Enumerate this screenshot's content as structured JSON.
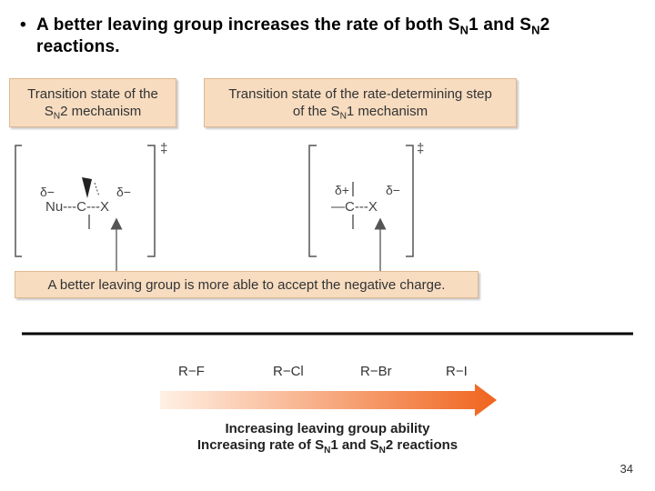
{
  "bullet": {
    "marker": "•",
    "text_pre": "A better leaving group increases the rate of both S",
    "sub1": "N",
    "text_mid": "1 and S",
    "sub2": "N",
    "text_post": "2 reactions."
  },
  "box_sn2": {
    "line1": "Transition state of the",
    "line2_pre": "S",
    "line2_sub": "N",
    "line2_post": "2 mechanism"
  },
  "box_sn1": {
    "line1": "Transition state of the rate-determining step",
    "line2_pre": "of the S",
    "line2_sub": "N",
    "line2_post": "1 mechanism"
  },
  "sn2_structure": {
    "delta_left": "δ−",
    "delta_right": "δ−",
    "formula": "Nu---C---X",
    "dagger": "‡"
  },
  "sn1_structure": {
    "delta_left": "δ+",
    "delta_right": "δ−",
    "formula": "—C---X",
    "dagger": "‡"
  },
  "note_box": "A better leaving group is more able to accept the negative charge.",
  "scale": {
    "items": [
      "R−F",
      "R−Cl",
      "R−Br",
      "R−I"
    ],
    "caption1": "Increasing leaving group ability",
    "caption2_a": "Increasing rate of S",
    "caption2_sub1": "N",
    "caption2_b": "1 and S",
    "caption2_sub2": "N",
    "caption2_c": "2 reactions"
  },
  "page_number": "34",
  "colors": {
    "box_fill": "#f7dcc0",
    "arrow_start": "#fff0e4",
    "arrow_end": "#f0641e"
  }
}
